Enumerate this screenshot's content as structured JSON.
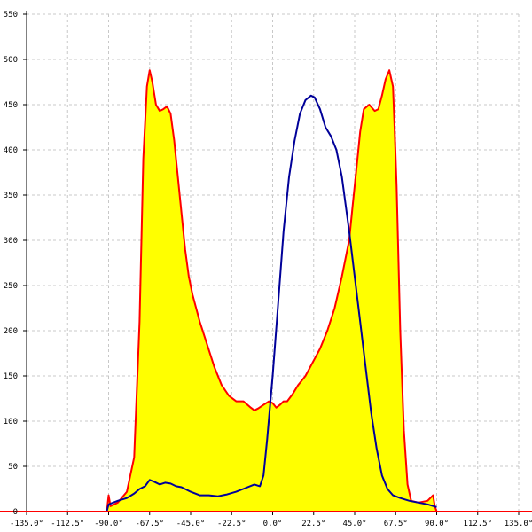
{
  "chart_data": {
    "type": "area",
    "title": "",
    "xlabel": "",
    "ylabel": "",
    "xlim": [
      -135,
      135
    ],
    "ylim": [
      0,
      550
    ],
    "grid": true,
    "x_ticks": [
      -135,
      -112.5,
      -90,
      -67.5,
      -45,
      -22.5,
      0,
      22.5,
      45,
      67.5,
      90,
      112.5,
      135
    ],
    "x_tick_labels": [
      "-135.0°",
      "-112.5°",
      "-90.0°",
      "-67.5°",
      "-45.0°",
      "-22.5°",
      "0.0°",
      "22.5°",
      "45.0°",
      "67.5°",
      "90.0°",
      "112.5°",
      "135.0°"
    ],
    "y_ticks": [
      0,
      50,
      100,
      150,
      200,
      250,
      300,
      350,
      400,
      450,
      500,
      550
    ],
    "y_tick_labels": [
      "0",
      "50",
      "100",
      "150",
      "200",
      "250",
      "300",
      "350",
      "400",
      "450",
      "500",
      "550"
    ],
    "colors": {
      "fill": "#ffff00",
      "series1": "#ff0000",
      "series2": "#000099",
      "baseline": "#ff0000"
    },
    "series": [
      {
        "color": "#ff0000",
        "filled": true,
        "x": [
          -135,
          -91,
          -90,
          -89,
          -85,
          -80,
          -76,
          -73,
          -71,
          -69,
          -67.5,
          -66,
          -64,
          -62,
          -60,
          -58,
          -56,
          -54,
          -52,
          -50,
          -48,
          -46,
          -44,
          -42,
          -40,
          -36,
          -32,
          -28,
          -24,
          -20,
          -16,
          -12,
          -10,
          -8,
          -5,
          -2,
          0,
          2,
          4,
          6,
          8,
          11,
          14,
          18,
          22,
          26,
          30,
          34,
          38,
          42,
          44,
          46,
          48,
          50,
          53,
          56,
          58,
          60,
          62,
          64,
          66,
          67,
          68,
          70,
          72,
          74,
          76,
          80,
          85,
          88,
          89,
          90,
          91,
          135
        ],
        "y": [
          0,
          0,
          18,
          6,
          10,
          22,
          60,
          210,
          390,
          470,
          488,
          475,
          450,
          443,
          445,
          448,
          440,
          410,
          370,
          330,
          290,
          260,
          240,
          225,
          210,
          185,
          160,
          140,
          128,
          122,
          122,
          115,
          112,
          114,
          118,
          122,
          120,
          115,
          118,
          122,
          122,
          130,
          140,
          150,
          165,
          180,
          200,
          225,
          260,
          300,
          340,
          380,
          420,
          445,
          450,
          443,
          445,
          460,
          478,
          488,
          470,
          420,
          360,
          200,
          90,
          30,
          12,
          10,
          12,
          18,
          6,
          0,
          0,
          0
        ]
      },
      {
        "color": "#000099",
        "filled": false,
        "x": [
          -91,
          -90,
          -85,
          -80,
          -76,
          -73,
          -70,
          -67.5,
          -65,
          -62,
          -59,
          -56,
          -53,
          -50,
          -45,
          -40,
          -35,
          -30,
          -25,
          -20,
          -15,
          -10,
          -7,
          -5,
          -3,
          0,
          3,
          6,
          9,
          12,
          15,
          18,
          21,
          23,
          26,
          29,
          32,
          35,
          38,
          40,
          42,
          45,
          48,
          51,
          54,
          57,
          60,
          63,
          66,
          70,
          75,
          80,
          85,
          90
        ],
        "y": [
          0,
          8,
          12,
          15,
          20,
          25,
          28,
          35,
          33,
          30,
          32,
          31,
          28,
          27,
          22,
          18,
          18,
          17,
          19,
          22,
          26,
          30,
          28,
          40,
          80,
          150,
          230,
          310,
          370,
          410,
          440,
          455,
          460,
          458,
          445,
          425,
          415,
          400,
          370,
          340,
          310,
          260,
          210,
          160,
          110,
          70,
          40,
          25,
          18,
          15,
          12,
          10,
          8,
          5
        ]
      }
    ]
  }
}
